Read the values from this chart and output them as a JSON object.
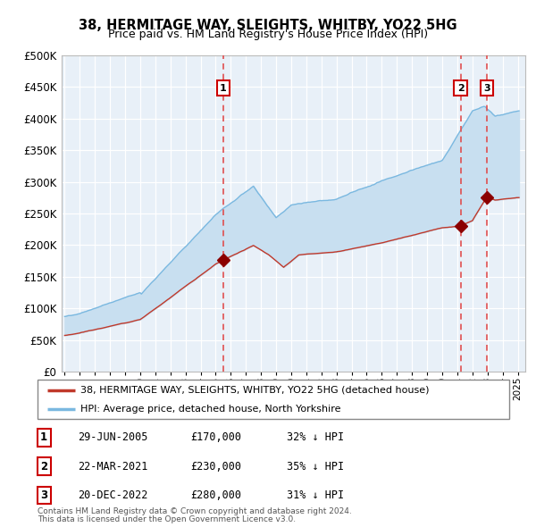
{
  "title": "38, HERMITAGE WAY, SLEIGHTS, WHITBY, YO22 5HG",
  "subtitle": "Price paid vs. HM Land Registry's House Price Index (HPI)",
  "legend_entry1": "38, HERMITAGE WAY, SLEIGHTS, WHITBY, YO22 5HG (detached house)",
  "legend_entry2": "HPI: Average price, detached house, North Yorkshire",
  "transactions": [
    {
      "num": 1,
      "date_label": "29-JUN-2005",
      "date_x": 2005.49,
      "price": 170000,
      "hpi_pct": "32% ↓ HPI"
    },
    {
      "num": 2,
      "date_label": "22-MAR-2021",
      "date_x": 2021.22,
      "price": 230000,
      "hpi_pct": "35% ↓ HPI"
    },
    {
      "num": 3,
      "date_label": "20-DEC-2022",
      "date_x": 2022.97,
      "price": 280000,
      "hpi_pct": "31% ↓ HPI"
    }
  ],
  "footer1": "Contains HM Land Registry data © Crown copyright and database right 2024.",
  "footer2": "This data is licensed under the Open Government Licence v3.0.",
  "plot_bg": "#e8f0f8",
  "grid_color": "#ffffff",
  "hpi_line_color": "#7ab8e0",
  "hpi_fill_color": "#c8dff0",
  "price_line_color": "#c0392b",
  "vline_color_red": "#e05050",
  "marker_color": "#8b0000",
  "ylim": [
    0,
    500000
  ],
  "xlim_start": 1994.8,
  "xlim_end": 2025.5,
  "yticks": [
    0,
    50000,
    100000,
    150000,
    200000,
    250000,
    300000,
    350000,
    400000,
    450000,
    500000
  ]
}
